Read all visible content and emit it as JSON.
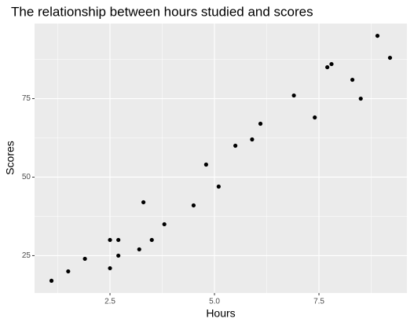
{
  "chart_data": {
    "type": "scatter",
    "title": "The relationship between hours studied and scores",
    "x_label": "Hours",
    "y_label": "Scores",
    "x": [
      2.5,
      5.1,
      3.2,
      8.5,
      3.5,
      1.5,
      9.2,
      5.5,
      8.3,
      2.7,
      7.7,
      5.9,
      4.5,
      3.3,
      1.1,
      8.9,
      2.5,
      1.9,
      6.1,
      7.4,
      2.7,
      4.8,
      3.8,
      6.9,
      7.8
    ],
    "values": [
      21,
      47,
      27,
      75,
      30,
      20,
      88,
      60,
      81,
      25,
      85,
      62,
      41,
      42,
      17,
      95,
      30,
      24,
      67,
      69,
      30,
      54,
      35,
      76,
      86
    ],
    "color": "#000000",
    "xlim": [
      0.695,
      9.605
    ],
    "ylim": [
      13.1,
      98.9
    ],
    "xticks": [
      2.5,
      {
        "value": 5,
        "label": "5.0"
      },
      7.5
    ],
    "yticks": [
      25,
      50,
      75
    ],
    "x_minor_ticks": [
      1.25,
      3.75,
      6.25,
      8.75
    ],
    "y_minor_ticks": [
      37.5,
      62.5,
      87.5
    ],
    "grid": true
  }
}
